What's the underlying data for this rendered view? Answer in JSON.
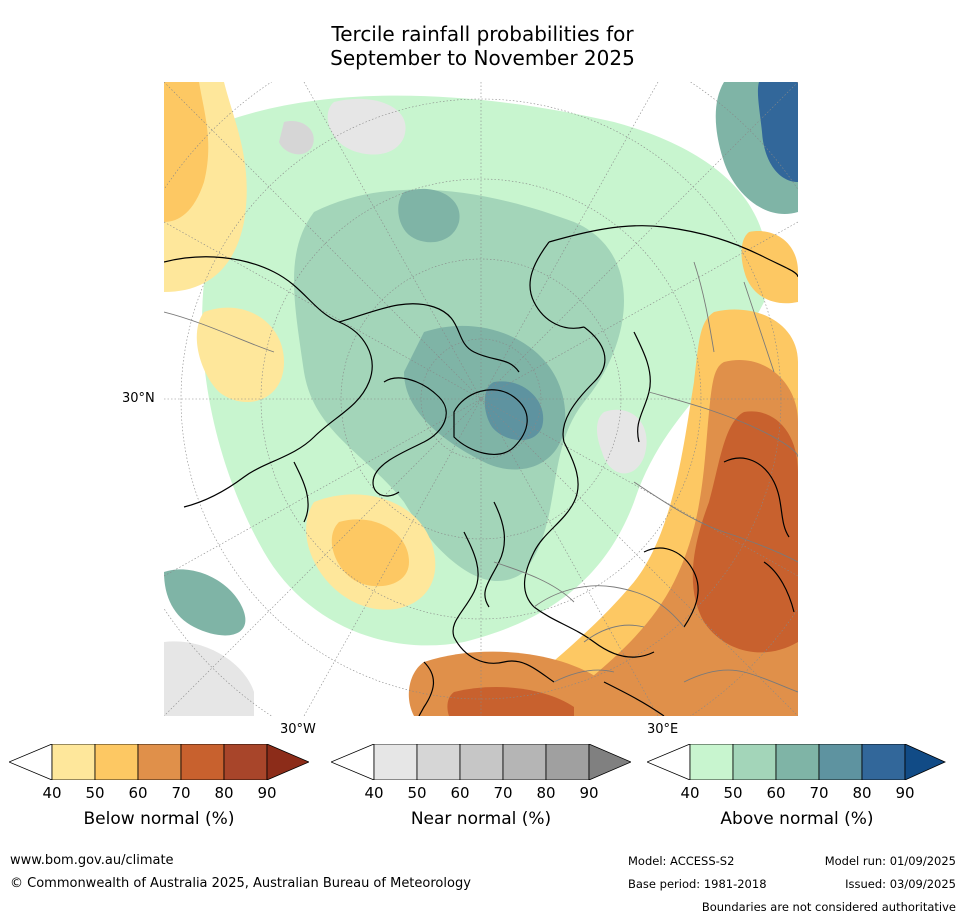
{
  "title": {
    "line1": "Tercile rainfall probabilities for",
    "line2": "September to November 2025"
  },
  "map": {
    "lat_label": "30°N",
    "lon_label_left": "30°W",
    "lon_label_right": "30°E"
  },
  "legends": [
    {
      "label": "Below normal (%)",
      "ticks": [
        "40",
        "50",
        "60",
        "70",
        "80",
        "90"
      ],
      "colors": [
        "#ffffff",
        "#fee79b",
        "#fdc863",
        "#e0904a",
        "#c8612e",
        "#a8452a",
        "#8c2c19"
      ]
    },
    {
      "label": "Near normal (%)",
      "ticks": [
        "40",
        "50",
        "60",
        "70",
        "80",
        "90"
      ],
      "colors": [
        "#ffffff",
        "#e6e6e6",
        "#d6d6d6",
        "#c6c6c6",
        "#b5b5b5",
        "#a0a0a0",
        "#808080"
      ]
    },
    {
      "label": "Above normal (%)",
      "ticks": [
        "40",
        "50",
        "60",
        "70",
        "80",
        "90"
      ],
      "colors": [
        "#ffffff",
        "#c8f5cf",
        "#a3d5b9",
        "#7fb4a6",
        "#5e93a0",
        "#32679a",
        "#114b86"
      ]
    }
  ],
  "footer": {
    "url": "www.bom.gov.au/climate",
    "copyright": "© Commonwealth of Australia 2025, Australian Bureau of Meteorology",
    "model": "Model: ACCESS-S2",
    "model_run": "Model run: 01/09/2025",
    "base_period": "Base period: 1981-2018",
    "issued": "Issued: 03/09/2025",
    "disclaimer": "Boundaries are not considered authoritative"
  }
}
